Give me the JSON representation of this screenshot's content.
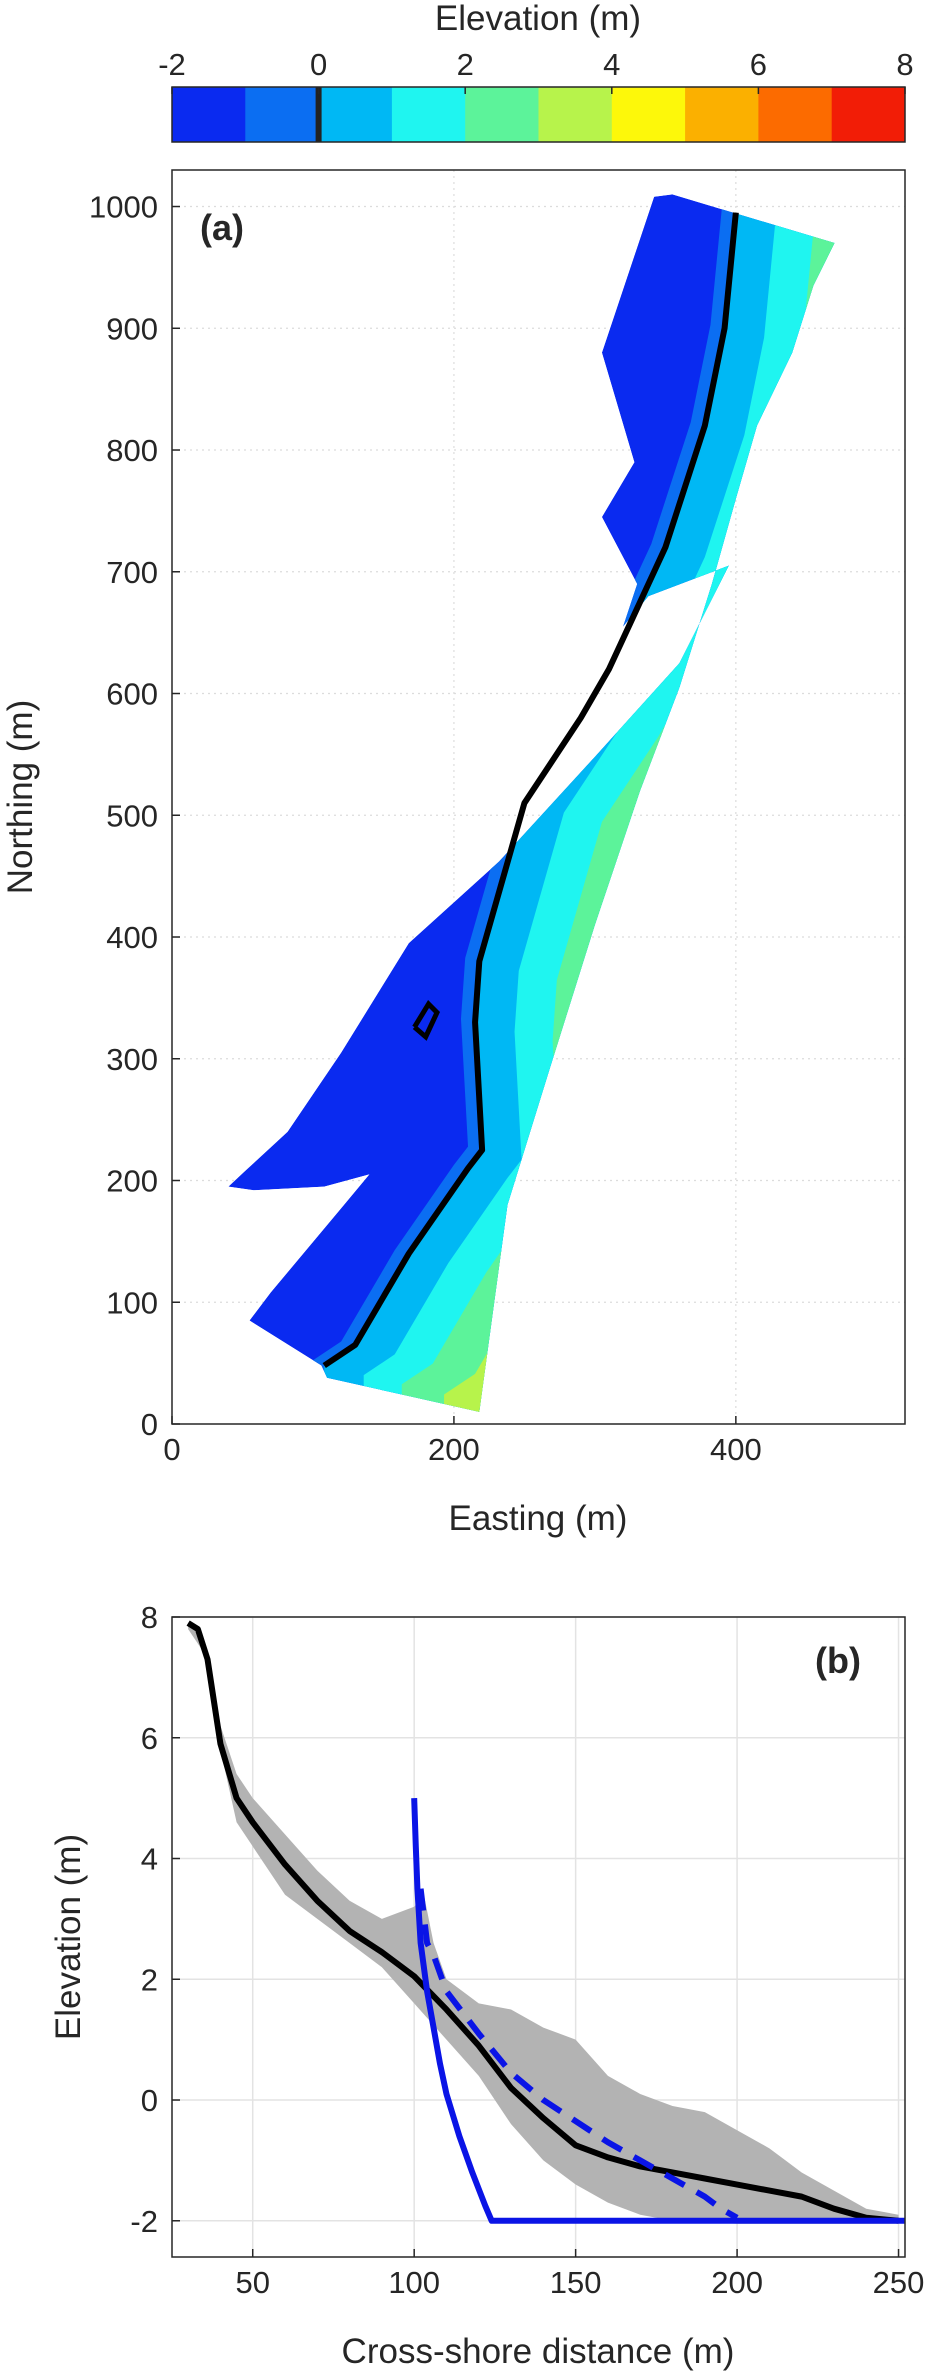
{
  "chart_data": [
    {
      "type": "contour",
      "panel_label": "(a)",
      "xlabel": "Easting (m)",
      "ylabel": "Northing (m)",
      "xlim": [
        0,
        520
      ],
      "ylim": [
        0,
        1030
      ],
      "xticks": [
        0,
        200,
        400
      ],
      "yticks": [
        0,
        100,
        200,
        300,
        400,
        500,
        600,
        700,
        800,
        900,
        1000
      ],
      "grid": true,
      "colorbar": {
        "title": "Elevation (m)",
        "ticks": [
          -2,
          0,
          2,
          4,
          6,
          8
        ],
        "levels": [
          -2,
          -1,
          0,
          1,
          2,
          3,
          4,
          5,
          6,
          7,
          8
        ],
        "colors": [
          "#0a2af0",
          "#0b6ef2",
          "#00b8f4",
          "#1ff5f0",
          "#5cf39a",
          "#b7f34b",
          "#fdf80a",
          "#fbb000",
          "#fc6b00",
          "#f21d06"
        ],
        "zero_marker_color": "#222222"
      },
      "domain_outline": [
        [
          106,
          48
        ],
        [
          55,
          85
        ],
        [
          70,
          108
        ],
        [
          122,
          180
        ],
        [
          140,
          205
        ],
        [
          108,
          195
        ],
        [
          58,
          192
        ],
        [
          40,
          195
        ],
        [
          52,
          208
        ],
        [
          82,
          240
        ],
        [
          120,
          305
        ],
        [
          168,
          395
        ],
        [
          232,
          462
        ],
        [
          300,
          548
        ],
        [
          360,
          625
        ],
        [
          395,
          705
        ],
        [
          338,
          680
        ],
        [
          320,
          655
        ],
        [
          330,
          690
        ],
        [
          305,
          745
        ],
        [
          328,
          790
        ],
        [
          305,
          880
        ],
        [
          342,
          1008
        ],
        [
          355,
          1010
        ],
        [
          470,
          970
        ],
        [
          455,
          935
        ],
        [
          440,
          880
        ],
        [
          415,
          820
        ],
        [
          400,
          760
        ],
        [
          383,
          690
        ],
        [
          360,
          605
        ],
        [
          332,
          520
        ],
        [
          300,
          410
        ],
        [
          268,
          292
        ],
        [
          238,
          180
        ],
        [
          218,
          10
        ],
        [
          110,
          38
        ]
      ],
      "shoreline_contour": [
        [
          108,
          48
        ],
        [
          130,
          65
        ],
        [
          168,
          140
        ],
        [
          210,
          210
        ],
        [
          220,
          225
        ],
        [
          215,
          330
        ],
        [
          218,
          380
        ],
        [
          250,
          510
        ],
        [
          290,
          580
        ],
        [
          310,
          620
        ],
        [
          350,
          720
        ],
        [
          378,
          820
        ],
        [
          392,
          900
        ],
        [
          400,
          995
        ]
      ],
      "closed_contour": [
        [
          172,
          326
        ],
        [
          182,
          345
        ],
        [
          188,
          338
        ],
        [
          180,
          318
        ],
        [
          172,
          326
        ]
      ]
    },
    {
      "type": "line",
      "panel_label": "(b)",
      "xlabel": "Cross-shore distance (m)",
      "ylabel": "Elevation (m)",
      "xlim": [
        25,
        252
      ],
      "ylim": [
        -2.6,
        8
      ],
      "xticks": [
        50,
        100,
        150,
        200,
        250
      ],
      "yticks": [
        -2,
        0,
        2,
        4,
        6,
        8
      ],
      "grid": true,
      "series": [
        {
          "style": "band",
          "color": "#b3b3b3",
          "upper": [
            [
              30,
              7.9
            ],
            [
              35,
              7.6
            ],
            [
              40,
              6.2
            ],
            [
              45,
              5.4
            ],
            [
              50,
              5.0
            ],
            [
              60,
              4.4
            ],
            [
              70,
              3.8
            ],
            [
              80,
              3.3
            ],
            [
              90,
              3.0
            ],
            [
              100,
              3.2
            ],
            [
              103,
              3.4
            ],
            [
              106,
              2.6
            ],
            [
              110,
              2.0
            ],
            [
              120,
              1.6
            ],
            [
              130,
              1.5
            ],
            [
              140,
              1.2
            ],
            [
              150,
              1.0
            ],
            [
              160,
              0.4
            ],
            [
              170,
              0.1
            ],
            [
              180,
              -0.1
            ],
            [
              190,
              -0.2
            ],
            [
              200,
              -0.5
            ],
            [
              210,
              -0.8
            ],
            [
              220,
              -1.2
            ],
            [
              230,
              -1.5
            ],
            [
              240,
              -1.8
            ],
            [
              250,
              -1.9
            ]
          ],
          "lower": [
            [
              30,
              7.8
            ],
            [
              35,
              7.4
            ],
            [
              40,
              5.8
            ],
            [
              45,
              4.6
            ],
            [
              50,
              4.2
            ],
            [
              60,
              3.4
            ],
            [
              70,
              3.0
            ],
            [
              80,
              2.6
            ],
            [
              90,
              2.2
            ],
            [
              100,
              1.6
            ],
            [
              110,
              1.0
            ],
            [
              120,
              0.4
            ],
            [
              130,
              -0.4
            ],
            [
              140,
              -1.0
            ],
            [
              150,
              -1.4
            ],
            [
              160,
              -1.7
            ],
            [
              170,
              -1.9
            ],
            [
              180,
              -2.0
            ],
            [
              200,
              -2.05
            ],
            [
              220,
              -2.05
            ],
            [
              240,
              -2.05
            ],
            [
              250,
              -2.05
            ]
          ]
        },
        {
          "style": "solid",
          "color": "#000000",
          "x": [
            30,
            33,
            36,
            40,
            45,
            50,
            60,
            70,
            80,
            90,
            100,
            110,
            120,
            130,
            140,
            150,
            160,
            170,
            180,
            190,
            200,
            210,
            220,
            230,
            240,
            250
          ],
          "y": [
            7.9,
            7.8,
            7.3,
            5.9,
            5.0,
            4.6,
            3.9,
            3.3,
            2.8,
            2.45,
            2.05,
            1.5,
            0.9,
            0.2,
            -0.3,
            -0.75,
            -0.95,
            -1.1,
            -1.2,
            -1.3,
            -1.4,
            -1.5,
            -1.6,
            -1.8,
            -1.95,
            -2.0
          ]
        },
        {
          "style": "solid",
          "color": "#0a14e6",
          "x": [
            100,
            100.5,
            101,
            102,
            104,
            106,
            108,
            110,
            114,
            118,
            122,
            124,
            135,
            180,
            252
          ],
          "y": [
            5.0,
            4.2,
            3.5,
            2.6,
            1.8,
            1.2,
            0.6,
            0.1,
            -0.6,
            -1.2,
            -1.75,
            -2.0,
            -2.0,
            -2.0,
            -2.0
          ]
        },
        {
          "style": "dashed",
          "color": "#0a14e6",
          "x": [
            102,
            104,
            106,
            110,
            120,
            130,
            140,
            150,
            160,
            170,
            180,
            190,
            195,
            200
          ],
          "y": [
            3.5,
            2.6,
            2.4,
            1.8,
            1.1,
            0.45,
            0.0,
            -0.35,
            -0.7,
            -1.0,
            -1.3,
            -1.6,
            -1.8,
            -1.95
          ]
        }
      ]
    }
  ]
}
